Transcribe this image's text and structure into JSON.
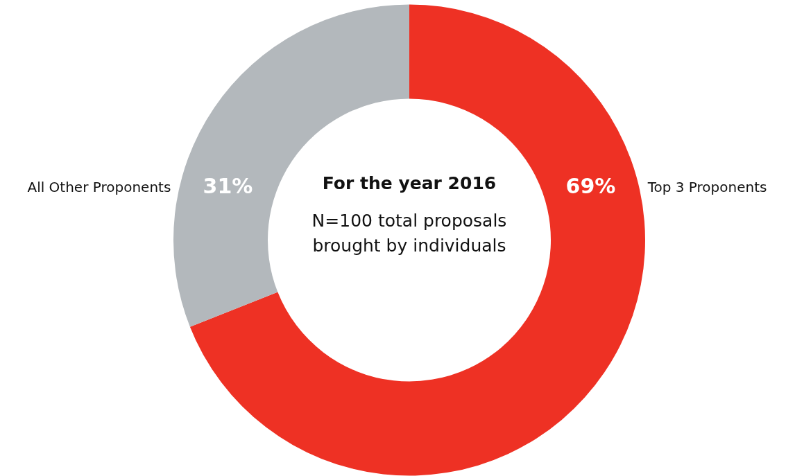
{
  "chart_data": {
    "type": "donut",
    "title": "For the year 2016",
    "subtitle": "N=100 total proposals brought by individuals",
    "categories": [
      "Top 3 Proponents",
      "All Other Proponents"
    ],
    "values": [
      69,
      31
    ],
    "colors": [
      "#ee3124",
      "#b3b8bc"
    ],
    "value_labels": [
      "69%",
      "31%"
    ]
  }
}
